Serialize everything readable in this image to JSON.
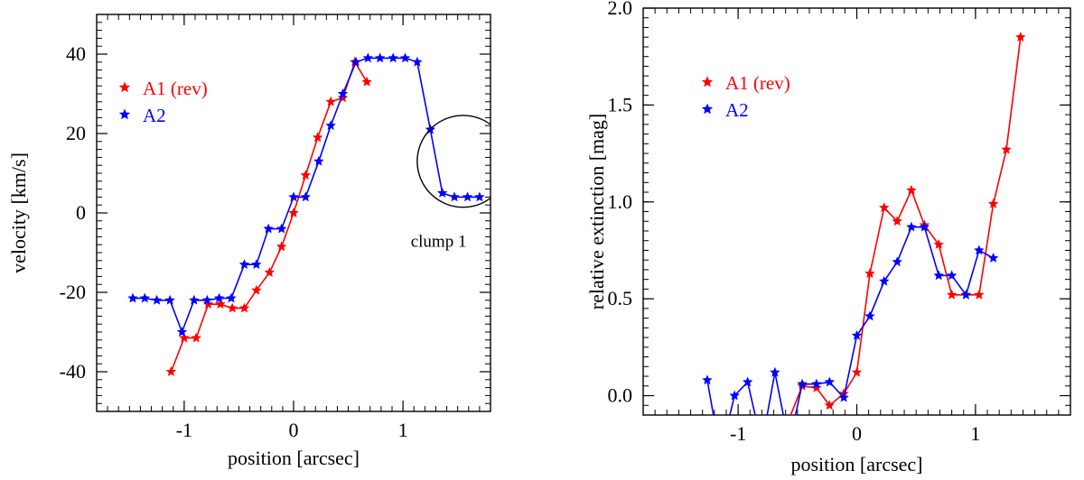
{
  "chart_data": [
    {
      "type": "line",
      "xlabel": "position [arcsec]",
      "ylabel": "velocity [km/s]",
      "xlim": [
        -1.8,
        1.8
      ],
      "ylim": [
        -50,
        50
      ],
      "xticks": [
        -1,
        0,
        1
      ],
      "xtick_labels": [
        "-1",
        "0",
        "1"
      ],
      "yticks": [
        -40,
        -20,
        0,
        20,
        40
      ],
      "ytick_labels": [
        "-40",
        "-20",
        "0",
        "20",
        "40"
      ],
      "legend_position": "upper-left",
      "marker": "star",
      "series": [
        {
          "name": "A1 (rev)",
          "color": "#ff0000",
          "x": [
            -1.12,
            -1.0,
            -0.89,
            -0.78,
            -0.67,
            -0.56,
            -0.45,
            -0.34,
            -0.22,
            -0.11,
            0.0,
            0.11,
            0.22,
            0.34,
            0.45,
            0.56,
            0.67,
            0.78
          ],
          "y": [
            -40,
            -31.5,
            -31.5,
            -23,
            -23,
            -24,
            -24,
            -19.5,
            -15,
            -8.5,
            0,
            9.5,
            19,
            28,
            29,
            38,
            33,
            null
          ]
        },
        {
          "name": "A2",
          "color": "#0000ff",
          "x": [
            -1.47,
            -1.36,
            -1.25,
            -1.13,
            -1.02,
            -0.91,
            -0.79,
            -0.68,
            -0.57,
            -0.45,
            -0.34,
            -0.23,
            -0.11,
            0.0,
            0.11,
            0.23,
            0.34,
            0.45,
            0.57,
            0.68,
            0.79,
            0.91,
            1.02,
            1.13,
            1.25,
            1.36,
            1.47,
            1.59,
            1.7
          ],
          "y": [
            -21.5,
            -21.5,
            -22,
            -22,
            -30,
            -22,
            -22,
            -21.5,
            -21.5,
            -13,
            -13,
            -4,
            -4,
            4,
            4,
            13,
            22,
            30,
            38,
            39,
            39,
            39,
            39,
            38,
            21,
            5,
            4,
            4,
            4
          ]
        }
      ],
      "annotations": [
        {
          "text": "clump 1",
          "shape": "circle",
          "center": [
            1.55,
            13
          ],
          "radius_data": 0.42
        }
      ]
    },
    {
      "type": "line",
      "xlabel": "position [arcsec]",
      "ylabel": "relative extinction [mag]",
      "xlim": [
        -1.8,
        1.8
      ],
      "ylim": [
        -0.1,
        2.0
      ],
      "xticks": [
        -1,
        0,
        1
      ],
      "xtick_labels": [
        "-1",
        "0",
        "1"
      ],
      "yticks": [
        0.0,
        0.5,
        1.0,
        1.5,
        2.0
      ],
      "ytick_labels": [
        "0.0",
        "0.5",
        "1.0",
        "1.5",
        "2.0"
      ],
      "legend_position": "upper-left",
      "marker": "star",
      "series": [
        {
          "name": "A1 (rev)",
          "color": "#ff0000",
          "x": [
            -0.57,
            -0.46,
            -0.34,
            -0.23,
            -0.11,
            0.0,
            0.11,
            0.23,
            0.34,
            0.46,
            0.57,
            0.69,
            0.8,
            0.92,
            1.03,
            1.15,
            1.26,
            1.38
          ],
          "y": [
            -0.12,
            0.05,
            0.04,
            -0.05,
            0.01,
            0.12,
            0.63,
            0.97,
            0.9,
            1.06,
            0.88,
            0.78,
            0.52,
            0.52,
            0.52,
            0.99,
            1.27,
            1.85
          ]
        },
        {
          "name": "A2",
          "color": "#0000ff",
          "x": [
            -1.26,
            -1.15,
            -1.03,
            -0.92,
            -0.8,
            -0.69,
            -0.57,
            -0.46,
            -0.34,
            -0.23,
            -0.11,
            0.0,
            0.11,
            0.23,
            0.34,
            0.46,
            0.57,
            0.69,
            0.8,
            0.92,
            1.03,
            1.15
          ],
          "y": [
            0.08,
            -0.3,
            0.0,
            0.07,
            -0.25,
            0.12,
            -0.25,
            0.06,
            0.06,
            0.07,
            -0.01,
            0.31,
            0.41,
            0.59,
            0.69,
            0.87,
            0.87,
            0.62,
            0.62,
            0.52,
            0.75,
            0.71
          ]
        }
      ]
    }
  ]
}
